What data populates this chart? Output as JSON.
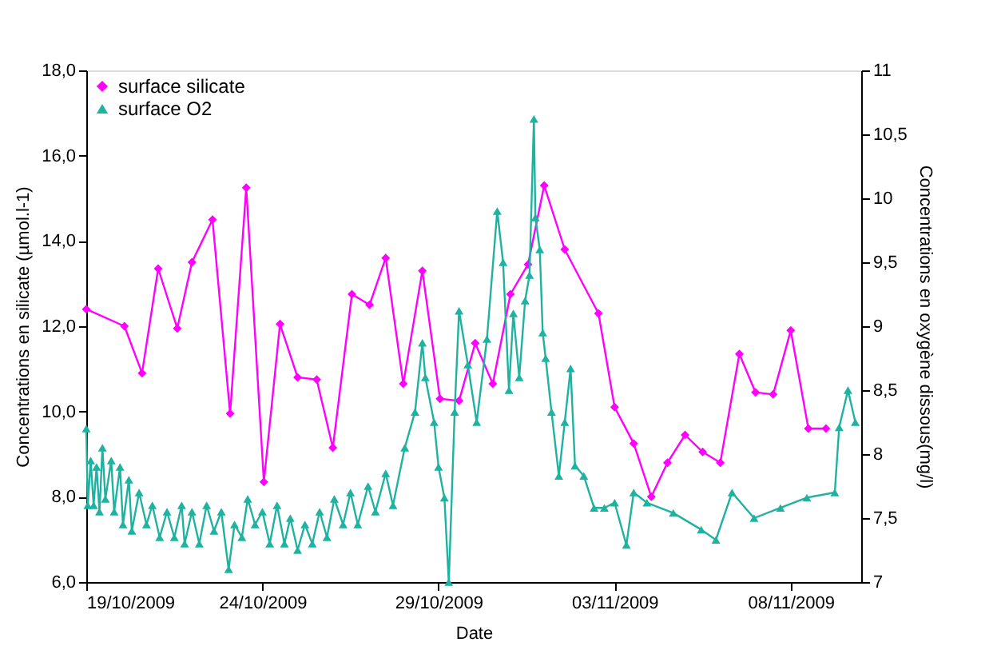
{
  "chart_data": {
    "type": "line",
    "xlabel": "Date",
    "ylabel": "Concentrations en silicate (µmol.l-1)",
    "y2label": "Concentrations en oxygène dissous(mg/l)",
    "xlim": [
      "2009-10-19",
      "2009-11-10"
    ],
    "xticks": [
      {
        "value": "2009-10-19",
        "label": "19/10/2009"
      },
      {
        "value": "2009-10-24",
        "label": "24/10/2009"
      },
      {
        "value": "2009-10-29",
        "label": "29/10/2009"
      },
      {
        "value": "2009-11-03",
        "label": "03/11/2009"
      },
      {
        "value": "2009-11-08",
        "label": "08/11/2009"
      }
    ],
    "ylim": [
      6,
      18
    ],
    "yticks": [
      {
        "value": 6,
        "label": "6,0"
      },
      {
        "value": 8,
        "label": "8,0"
      },
      {
        "value": 10,
        "label": "10,0"
      },
      {
        "value": 12,
        "label": "12,0"
      },
      {
        "value": 14,
        "label": "14,0"
      },
      {
        "value": 16,
        "label": "16,0"
      },
      {
        "value": 18,
        "label": "18,0"
      }
    ],
    "y2lim": [
      7,
      11
    ],
    "y2ticks": [
      {
        "value": 7,
        "label": "7"
      },
      {
        "value": 7.5,
        "label": "7,5"
      },
      {
        "value": 8,
        "label": "8"
      },
      {
        "value": 8.5,
        "label": "8,5"
      },
      {
        "value": 9,
        "label": "9"
      },
      {
        "value": 9.5,
        "label": "9,5"
      },
      {
        "value": 10,
        "label": "10"
      },
      {
        "value": 10.5,
        "label": "10,5"
      },
      {
        "value": 11,
        "label": "11"
      }
    ],
    "legend": "top left",
    "grid": false,
    "series": [
      {
        "name": "surface silicate",
        "color": "#ff00ff",
        "marker": "diamond",
        "axis": "y",
        "x": [
          "2009-10-19T00:00",
          "2009-10-20T02:00",
          "2009-10-20T14:00",
          "2009-10-21T01:00",
          "2009-10-21T14:00",
          "2009-10-22T00:00",
          "2009-10-22T14:00",
          "2009-10-23T02:00",
          "2009-10-23T13:00",
          "2009-10-24T01:00",
          "2009-10-24T12:00",
          "2009-10-25T00:00",
          "2009-10-25T13:00",
          "2009-10-26T00:00",
          "2009-10-26T13:00",
          "2009-10-27T01:00",
          "2009-10-27T12:00",
          "2009-10-28T00:00",
          "2009-10-28T13:00",
          "2009-10-29T01:00",
          "2009-10-29T14:00",
          "2009-10-30T01:00",
          "2009-10-30T13:00",
          "2009-10-31T01:00",
          "2009-10-31T13:00",
          "2009-11-01T00:00",
          "2009-11-01T14:00",
          "2009-11-02T13:00",
          "2009-11-03T00:00",
          "2009-11-03T13:00",
          "2009-11-04T01:00",
          "2009-11-04T12:00",
          "2009-11-05T00:00",
          "2009-11-05T12:00",
          "2009-11-06T00:00",
          "2009-11-06T13:00",
          "2009-11-07T00:00",
          "2009-11-07T12:00",
          "2009-11-08T00:00",
          "2009-11-08T12:00",
          "2009-11-09T00:00"
        ],
        "values": [
          12.4,
          12.0,
          10.9,
          13.35,
          11.95,
          13.5,
          14.5,
          9.95,
          15.25,
          8.35,
          12.05,
          10.8,
          10.75,
          9.15,
          12.75,
          12.5,
          13.6,
          10.65,
          13.3,
          10.3,
          10.25,
          11.6,
          10.65,
          12.75,
          13.45,
          15.3,
          13.8,
          12.3,
          10.1,
          9.25,
          8.0,
          8.8,
          9.45,
          9.05,
          8.8,
          11.35,
          10.45,
          10.4,
          11.9,
          9.6,
          9.6
        ]
      },
      {
        "name": "surface O2",
        "color": "#20b2a0",
        "marker": "triangle",
        "axis": "y2",
        "x": [
          "2009-10-19T00:00",
          "2009-10-19T01:00",
          "2009-10-19T03:00",
          "2009-10-19T05:00",
          "2009-10-19T07:00",
          "2009-10-19T09:00",
          "2009-10-19T11:00",
          "2009-10-19T13:00",
          "2009-10-19T17:00",
          "2009-10-19T19:00",
          "2009-10-19T23:00",
          "2009-10-20T01:00",
          "2009-10-20T05:00",
          "2009-10-20T07:00",
          "2009-10-20T12:00",
          "2009-10-20T17:00",
          "2009-10-20T21:00",
          "2009-10-21T02:00",
          "2009-10-21T07:00",
          "2009-10-21T12:00",
          "2009-10-21T17:00",
          "2009-10-21T19:00",
          "2009-10-22T00:00",
          "2009-10-22T05:00",
          "2009-10-22T10:00",
          "2009-10-22T15:00",
          "2009-10-22T20:00",
          "2009-10-23T01:00",
          "2009-10-23T05:00",
          "2009-10-23T10:00",
          "2009-10-23T14:00",
          "2009-10-23T19:00",
          "2009-10-24T00:00",
          "2009-10-24T05:00",
          "2009-10-24T10:00",
          "2009-10-24T15:00",
          "2009-10-24T19:00",
          "2009-10-25T00:00",
          "2009-10-25T05:00",
          "2009-10-25T10:00",
          "2009-10-25T15:00",
          "2009-10-25T20:00",
          "2009-10-26T01:00",
          "2009-10-26T07:00",
          "2009-10-26T12:00",
          "2009-10-26T17:00",
          "2009-10-27T00:00",
          "2009-10-27T05:00",
          "2009-10-27T12:00",
          "2009-10-27T17:00",
          "2009-10-28T01:00",
          "2009-10-28T08:00",
          "2009-10-28T13:00",
          "2009-10-28T15:00",
          "2009-10-28T21:00",
          "2009-10-29T00:00",
          "2009-10-29T04:00",
          "2009-10-29T07:00",
          "2009-10-29T11:00",
          "2009-10-29T14:00",
          "2009-10-29T20:00",
          "2009-10-30T02:00",
          "2009-10-30T09:00",
          "2009-10-30T16:00",
          "2009-10-30T20:00",
          "2009-10-31T00:00",
          "2009-10-31T03:00",
          "2009-10-31T07:00",
          "2009-10-31T11:00",
          "2009-10-31T14:00",
          "2009-10-31T17:00",
          "2009-10-31T18:00",
          "2009-10-31T21:00",
          "2009-10-31T23:00",
          "2009-11-01T01:00",
          "2009-11-01T05:00",
          "2009-11-01T10:00",
          "2009-11-01T14:00",
          "2009-11-01T18:00",
          "2009-11-01T21:00",
          "2009-11-02T03:00",
          "2009-11-02T10:00",
          "2009-11-02T17:00",
          "2009-11-03T00:00",
          "2009-11-03T08:00",
          "2009-11-03T13:00",
          "2009-11-03T22:00",
          "2009-11-04T16:00",
          "2009-11-05T11:00",
          "2009-11-05T21:00",
          "2009-11-06T08:00",
          "2009-11-06T23:00",
          "2009-11-07T17:00",
          "2009-11-08T11:00",
          "2009-11-09T06:00",
          "2009-11-09T09:00",
          "2009-11-09T15:00",
          "2009-11-09T20:00"
        ],
        "values": [
          8.2,
          7.6,
          7.95,
          7.6,
          7.9,
          7.55,
          8.05,
          7.65,
          7.95,
          7.55,
          7.9,
          7.45,
          7.8,
          7.4,
          7.7,
          7.45,
          7.6,
          7.35,
          7.55,
          7.35,
          7.6,
          7.3,
          7.55,
          7.3,
          7.6,
          7.4,
          7.55,
          7.1,
          7.45,
          7.35,
          7.65,
          7.45,
          7.55,
          7.3,
          7.6,
          7.3,
          7.5,
          7.25,
          7.45,
          7.3,
          7.55,
          7.35,
          7.65,
          7.45,
          7.7,
          7.45,
          7.75,
          7.55,
          7.85,
          7.6,
          8.05,
          8.33,
          8.87,
          8.6,
          8.25,
          7.9,
          7.66,
          7.0,
          8.33,
          9.12,
          8.7,
          8.25,
          8.9,
          9.9,
          9.5,
          8.5,
          9.1,
          8.6,
          9.2,
          9.4,
          10.62,
          9.85,
          9.6,
          8.95,
          8.75,
          8.33,
          7.83,
          8.25,
          8.67,
          7.91,
          7.83,
          7.58,
          7.58,
          7.62,
          7.29,
          7.7,
          7.62,
          7.54,
          7.41,
          7.33,
          7.7,
          7.5,
          7.58,
          7.66,
          7.7,
          8.21,
          8.5,
          8.25
        ]
      }
    ]
  }
}
